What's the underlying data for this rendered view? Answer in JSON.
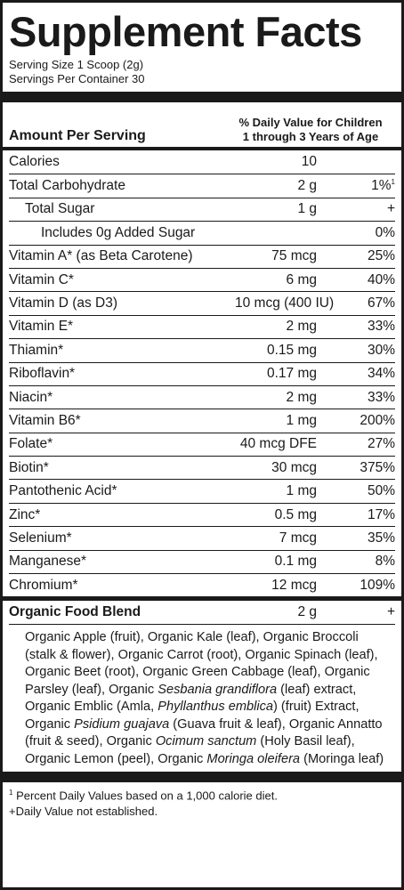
{
  "title": "Supplement Facts",
  "serving_size": "Serving Size 1 Scoop (2g)",
  "servings_per_container": "Servings Per Container 30",
  "amount_per_serving": "Amount Per Serving",
  "dv_header_line1": "% Daily Value for Children",
  "dv_header_line2": "1 through 3 Years of Age",
  "nutrients": [
    {
      "name": "Calories",
      "amount": "10",
      "dv": ""
    },
    {
      "name": "Total Carbohydrate",
      "amount": "2 g",
      "dv": "1%",
      "dv_mark": "1"
    },
    {
      "name": "Total Sugar",
      "amount": "1 g",
      "dv": "+"
    },
    {
      "name": "Includes 0g Added Sugar",
      "amount": "",
      "dv": "0%"
    },
    {
      "name": "Vitamin A* (as Beta Carotene)",
      "amount": "75 mcg",
      "dv": "25%"
    },
    {
      "name": "Vitamin C*",
      "amount": "6 mg",
      "dv": "40%"
    },
    {
      "name": "Vitamin D (as D3)",
      "amount": "10 mcg (400 IU)",
      "dv": "67%"
    },
    {
      "name": "Vitamin E*",
      "amount": "2 mg",
      "dv": "33%"
    },
    {
      "name": "Thiamin*",
      "amount": "0.15 mg",
      "dv": "30%"
    },
    {
      "name": "Riboflavin*",
      "amount": "0.17 mg",
      "dv": "34%"
    },
    {
      "name": "Niacin*",
      "amount": "2 mg",
      "dv": "33%"
    },
    {
      "name": "Vitamin B6*",
      "amount": "1 mg",
      "dv": "200%"
    },
    {
      "name": "Folate*",
      "amount": "40 mcg DFE",
      "dv": "27%"
    },
    {
      "name": "Biotin*",
      "amount": "30 mcg",
      "dv": "375%"
    },
    {
      "name": "Pantothenic Acid*",
      "amount": "1 mg",
      "dv": "50%"
    },
    {
      "name": "Zinc*",
      "amount": "0.5 mg",
      "dv": "17%"
    },
    {
      "name": "Selenium*",
      "amount": "7 mcg",
      "dv": "35%"
    },
    {
      "name": "Manganese*",
      "amount": "0.1 mg",
      "dv": "8%"
    },
    {
      "name": "Chromium*",
      "amount": "12 mcg",
      "dv": "109%"
    }
  ],
  "blend": {
    "name": "Organic Food Blend",
    "amount": "2 g",
    "dv": "+"
  },
  "ingredients": [
    {
      "t": "Organic Apple (fruit), Organic Kale (leaf), Organic Broccoli (stalk & flower), Organic Carrot (root), Organic Spinach (leaf), Organic Beet (root), Organic Green Cabbage (leaf), Organic Parsley (leaf), Organic ",
      "i": false
    },
    {
      "t": "Sesbania grandiflora",
      "i": true
    },
    {
      "t": " (leaf) extract, Organic Emblic (Amla, ",
      "i": false
    },
    {
      "t": "Phyllanthus emblica",
      "i": true
    },
    {
      "t": ") (fruit) Extract, Organic ",
      "i": false
    },
    {
      "t": "Psidium guajava",
      "i": true
    },
    {
      "t": " (Guava fruit & leaf), Organic Annatto (fruit & seed), Organic ",
      "i": false
    },
    {
      "t": "Ocimum sanctum",
      "i": true
    },
    {
      "t": " (Holy Basil leaf), Organic Lemon (peel), Organic ",
      "i": false
    },
    {
      "t": "Moringa oleifera",
      "i": true
    },
    {
      "t": " (Moringa leaf)",
      "i": false
    }
  ],
  "footnote_mark": "1",
  "footnote_1": " Percent Daily Values based on a 1,000 calorie diet.",
  "footnote_2": "+Daily Value not established."
}
